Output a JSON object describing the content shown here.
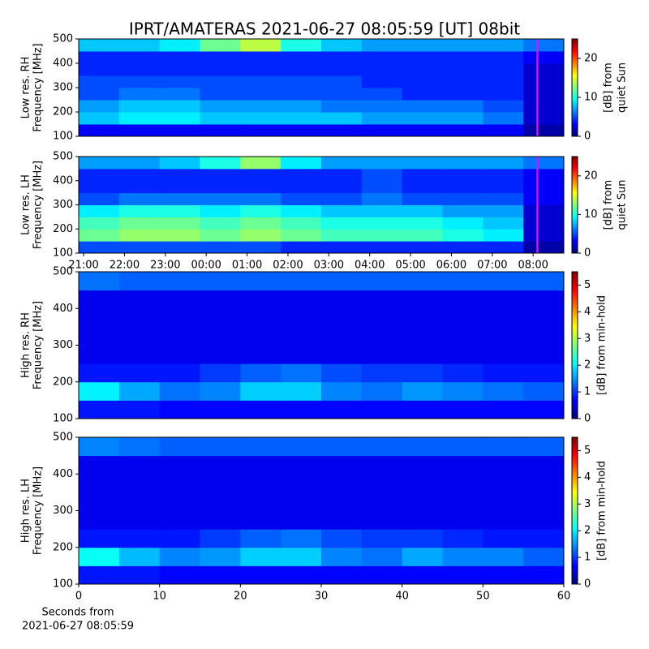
{
  "chart_data": [
    {
      "type": "heatmap",
      "title": "IPRT/AMATERAS 2021-06-27 08:05:59 [UT]   08bit",
      "ylabel": [
        "Low res. RH",
        "Frequency [MHz]"
      ],
      "clabel": [
        "[dB] from",
        "quiet Sun"
      ],
      "colormap": "jet",
      "clim": [
        0,
        25
      ],
      "cticks": [
        0,
        10,
        20
      ],
      "xlim": [
        20.88,
        32.75
      ],
      "ylim": [
        100,
        500
      ],
      "yticks": [
        100,
        200,
        300,
        400,
        500
      ],
      "time_marker": 32.1,
      "marker_color": "#ff00ff",
      "z": [
        [
          3,
          3,
          3,
          3,
          3,
          3,
          3,
          3,
          3,
          3,
          3,
          1
        ],
        [
          8,
          9,
          9,
          8,
          8,
          8,
          8,
          7,
          7,
          7,
          6,
          2
        ],
        [
          7,
          8,
          8,
          7,
          7,
          7,
          6,
          6,
          6,
          6,
          5,
          2
        ],
        [
          5,
          6,
          6,
          5,
          5,
          5,
          5,
          5,
          4,
          4,
          4,
          2
        ],
        [
          5,
          5,
          5,
          5,
          5,
          5,
          5,
          4,
          4,
          4,
          4,
          2
        ],
        [
          4,
          4,
          4,
          4,
          4,
          4,
          4,
          4,
          4,
          4,
          4,
          2
        ],
        [
          4,
          4,
          4,
          4,
          4,
          4,
          4,
          4,
          4,
          4,
          4,
          3
        ],
        [
          8,
          8,
          9,
          12,
          14,
          10,
          8,
          7,
          7,
          7,
          7,
          6
        ]
      ]
    },
    {
      "type": "heatmap",
      "ylabel": [
        "Low res. LH",
        "Frequency [MHz]"
      ],
      "clabel": [
        "[dB] from",
        "quiet Sun"
      ],
      "colormap": "jet",
      "clim": [
        0,
        25
      ],
      "cticks": [
        0,
        10,
        20
      ],
      "xlim": [
        20.88,
        32.75
      ],
      "ylim": [
        100,
        500
      ],
      "yticks": [
        100,
        200,
        300,
        400,
        500
      ],
      "xticks": [
        {
          "value": 21,
          "label": "21:00"
        },
        {
          "value": 22,
          "label": "22:00"
        },
        {
          "value": 23,
          "label": "23:00"
        },
        {
          "value": 24,
          "label": "00:00"
        },
        {
          "value": 25,
          "label": "01:00"
        },
        {
          "value": 26,
          "label": "02:00"
        },
        {
          "value": 27,
          "label": "03:00"
        },
        {
          "value": 28,
          "label": "04:00"
        },
        {
          "value": 29,
          "label": "05:00"
        },
        {
          "value": 30,
          "label": "06:00"
        },
        {
          "value": 31,
          "label": "07:00"
        },
        {
          "value": 32,
          "label": "08:00"
        }
      ],
      "time_marker": 32.1,
      "marker_color": "#ff00ff",
      "z": [
        [
          5,
          5,
          5,
          5,
          5,
          4,
          4,
          4,
          4,
          4,
          4,
          1
        ],
        [
          12,
          13,
          13,
          12,
          13,
          12,
          11,
          11,
          11,
          10,
          9,
          2
        ],
        [
          11,
          12,
          12,
          11,
          12,
          11,
          10,
          10,
          10,
          9,
          8,
          2
        ],
        [
          9,
          10,
          10,
          9,
          10,
          9,
          8,
          8,
          8,
          7,
          7,
          2
        ],
        [
          5,
          6,
          6,
          6,
          6,
          5,
          5,
          6,
          5,
          5,
          5,
          3
        ],
        [
          4,
          4,
          4,
          4,
          4,
          4,
          4,
          5,
          4,
          4,
          4,
          3
        ],
        [
          4,
          4,
          4,
          4,
          4,
          4,
          4,
          5,
          4,
          4,
          4,
          3
        ],
        [
          7,
          7,
          8,
          10,
          13,
          9,
          7,
          7,
          7,
          7,
          7,
          6
        ]
      ]
    },
    {
      "type": "heatmap",
      "ylabel": [
        "High res. RH",
        "Frequency [MHz]"
      ],
      "clabel": [
        "[dB] from min-hold"
      ],
      "colormap": "jet",
      "clim": [
        0,
        5.5
      ],
      "cticks": [
        0,
        1,
        2,
        3,
        4,
        5
      ],
      "xlim": [
        0,
        60
      ],
      "ylim": [
        100,
        500
      ],
      "yticks": [
        100,
        200,
        300,
        400,
        500
      ],
      "z": [
        [
          0.8,
          0.8,
          0.7,
          0.7,
          0.7,
          0.7,
          0.7,
          0.7,
          0.7,
          0.7,
          0.7,
          0.7
        ],
        [
          2.0,
          1.6,
          1.3,
          1.4,
          1.8,
          1.8,
          1.4,
          1.3,
          1.5,
          1.4,
          1.3,
          1.2
        ],
        [
          0.8,
          0.8,
          0.8,
          1.0,
          1.2,
          1.3,
          1.1,
          1.0,
          1.0,
          0.9,
          0.8,
          0.8
        ],
        [
          0.6,
          0.6,
          0.6,
          0.6,
          0.6,
          0.6,
          0.6,
          0.6,
          0.6,
          0.6,
          0.6,
          0.6
        ],
        [
          0.6,
          0.6,
          0.6,
          0.6,
          0.6,
          0.6,
          0.6,
          0.6,
          0.6,
          0.6,
          0.6,
          0.6
        ],
        [
          0.6,
          0.6,
          0.6,
          0.6,
          0.6,
          0.6,
          0.6,
          0.6,
          0.6,
          0.6,
          0.6,
          0.6
        ],
        [
          0.6,
          0.6,
          0.6,
          0.6,
          0.6,
          0.6,
          0.6,
          0.6,
          0.6,
          0.6,
          0.6,
          0.6
        ],
        [
          1.3,
          1.2,
          1.2,
          1.2,
          1.2,
          1.2,
          1.2,
          1.2,
          1.2,
          1.2,
          1.2,
          1.2
        ]
      ]
    },
    {
      "type": "heatmap",
      "ylabel": [
        "High res. LH",
        "Frequency [MHz]"
      ],
      "clabel": [
        "[dB] from min-hold"
      ],
      "colormap": "jet",
      "clim": [
        0,
        5.5
      ],
      "cticks": [
        0,
        1,
        2,
        3,
        4,
        5
      ],
      "xlim": [
        0,
        60
      ],
      "ylim": [
        100,
        500
      ],
      "yticks": [
        100,
        200,
        300,
        400,
        500
      ],
      "xticks": [
        0,
        10,
        20,
        30,
        40,
        50,
        60
      ],
      "xlabel": [
        "Seconds from",
        "2021-06-27 08:05:59"
      ],
      "z": [
        [
          0.8,
          0.8,
          0.7,
          0.7,
          0.7,
          0.7,
          0.7,
          0.7,
          0.7,
          0.7,
          0.7,
          0.7
        ],
        [
          2.1,
          1.7,
          1.4,
          1.5,
          1.8,
          1.8,
          1.4,
          1.3,
          1.6,
          1.4,
          1.4,
          1.2
        ],
        [
          0.8,
          0.8,
          0.8,
          1.0,
          1.2,
          1.3,
          1.1,
          1.0,
          1.0,
          0.9,
          0.8,
          0.8
        ],
        [
          0.6,
          0.6,
          0.6,
          0.6,
          0.6,
          0.6,
          0.6,
          0.6,
          0.6,
          0.6,
          0.6,
          0.6
        ],
        [
          0.6,
          0.6,
          0.6,
          0.6,
          0.6,
          0.6,
          0.6,
          0.6,
          0.6,
          0.6,
          0.6,
          0.6
        ],
        [
          0.6,
          0.6,
          0.6,
          0.6,
          0.6,
          0.6,
          0.6,
          0.6,
          0.6,
          0.6,
          0.6,
          0.6
        ],
        [
          0.6,
          0.6,
          0.6,
          0.6,
          0.6,
          0.6,
          0.6,
          0.6,
          0.6,
          0.6,
          0.6,
          0.6
        ],
        [
          1.4,
          1.3,
          1.2,
          1.2,
          1.2,
          1.2,
          1.2,
          1.2,
          1.2,
          1.2,
          1.2,
          1.2
        ]
      ]
    }
  ]
}
